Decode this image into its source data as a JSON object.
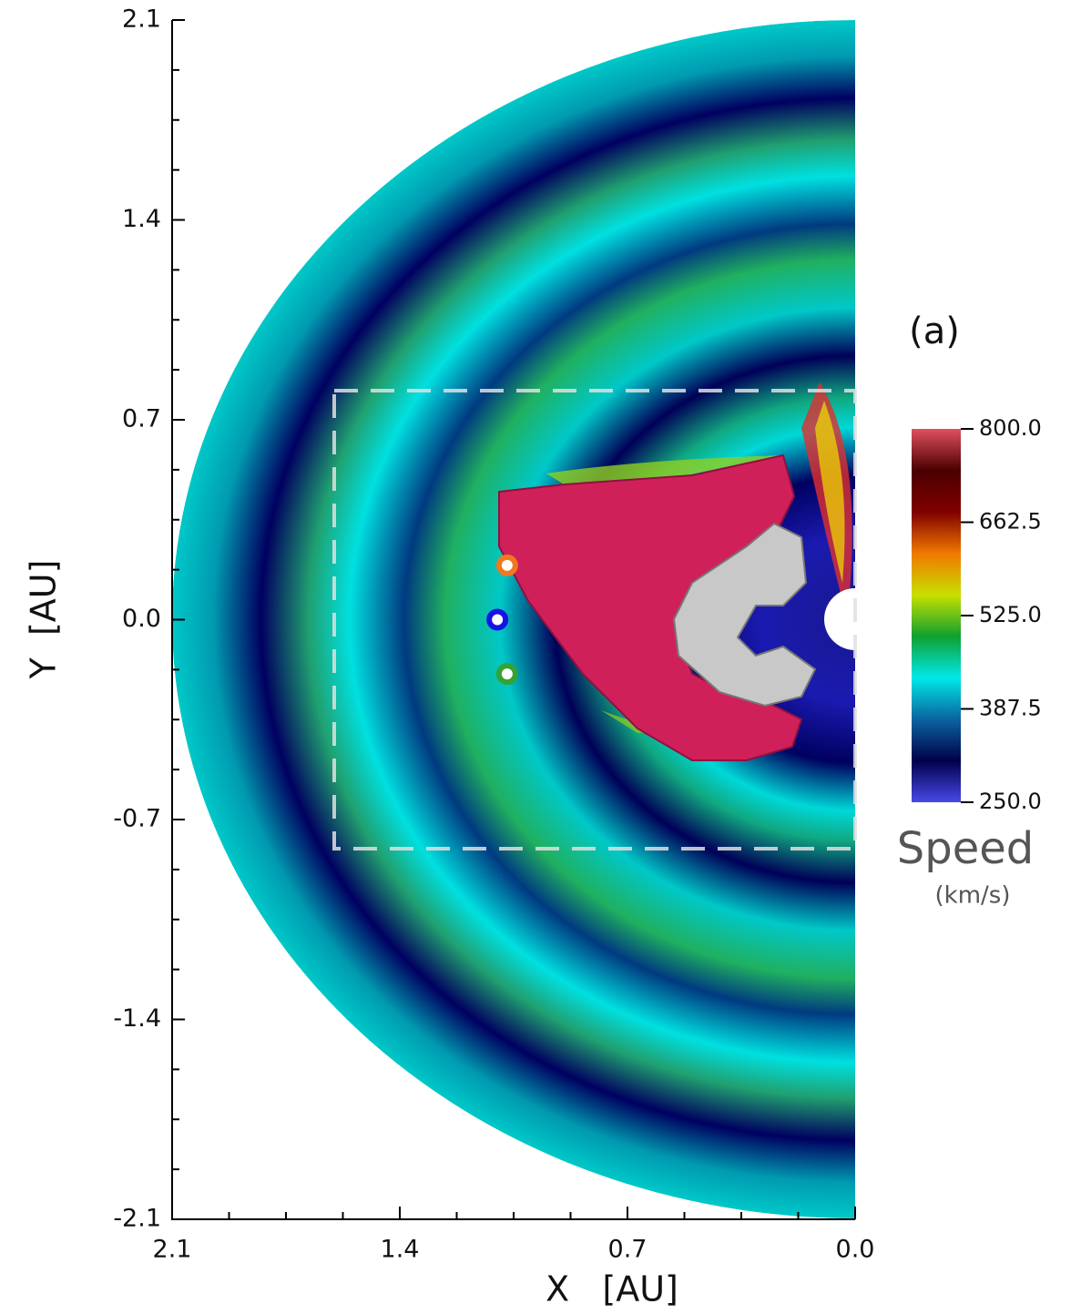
{
  "chart_data": {
    "type": "scatter",
    "xlabel": "X   [AU]",
    "ylabel": "Y  [AU]",
    "annotation": "(a)",
    "xlim": [
      2.1,
      0
    ],
    "ylim": [
      -2.1,
      2.1
    ],
    "xticks": [
      2.1,
      1.4,
      0.7,
      {
        "value": 0,
        "label": "0.0"
      }
    ],
    "yticks": [
      2.1,
      1.4,
      0.7,
      {
        "value": 0,
        "label": "0.0"
      },
      -0.7,
      -1.4,
      -2.1
    ],
    "minor_ticks": 3,
    "points": [
      {
        "x": 1.07,
        "y": 0.19,
        "color": "#f07820"
      },
      {
        "x": 1.1,
        "y": 0,
        "color": "#1414e6"
      },
      {
        "x": 1.07,
        "y": -0.19,
        "color": "#34a334"
      }
    ],
    "colorbar": {
      "label": "Speed",
      "unit": "(km/s)",
      "lim": [
        250,
        800
      ],
      "ticks": [
        {
          "value": 800,
          "label": "800.0"
        },
        {
          "value": 662.5,
          "label": "662.5"
        },
        {
          "value": 525,
          "label": "525.0"
        },
        {
          "value": 387.5,
          "label": "387.5"
        },
        {
          "value": 250,
          "label": "250.0"
        }
      ],
      "colors": [
        "#4848e8",
        "#00004a",
        "#0a64a0",
        "#00e8e8",
        "#10a030",
        "#c8e000",
        "#f07800",
        "#800000",
        "#4a0000",
        "#e05060"
      ]
    }
  }
}
